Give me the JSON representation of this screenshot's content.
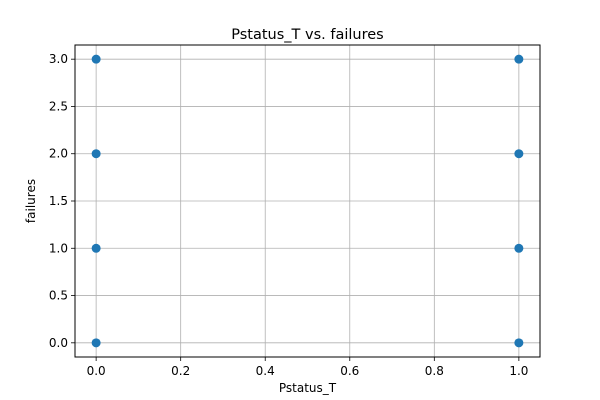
{
  "chart_data": {
    "type": "scatter",
    "title": "Pstatus_T vs. failures",
    "xlabel": "Pstatus_T",
    "ylabel": "failures",
    "xlim": [
      -0.05,
      1.05
    ],
    "ylim": [
      -0.15,
      3.15
    ],
    "xticks": [
      0.0,
      0.2,
      0.4,
      0.6,
      0.8,
      1.0
    ],
    "xtick_labels": [
      "0.0",
      "0.2",
      "0.4",
      "0.6",
      "0.8",
      "1.0"
    ],
    "yticks": [
      0.0,
      0.5,
      1.0,
      1.5,
      2.0,
      2.5,
      3.0
    ],
    "ytick_labels": [
      "0.0",
      "0.5",
      "1.0",
      "1.5",
      "2.0",
      "2.5",
      "3.0"
    ],
    "grid": true,
    "marker_color": "#1f77b4",
    "points": [
      {
        "x": 0,
        "y": 3
      },
      {
        "x": 0,
        "y": 2
      },
      {
        "x": 0,
        "y": 1
      },
      {
        "x": 0,
        "y": 0
      },
      {
        "x": 1,
        "y": 3
      },
      {
        "x": 1,
        "y": 2
      },
      {
        "x": 1,
        "y": 1
      },
      {
        "x": 1,
        "y": 0
      }
    ]
  }
}
